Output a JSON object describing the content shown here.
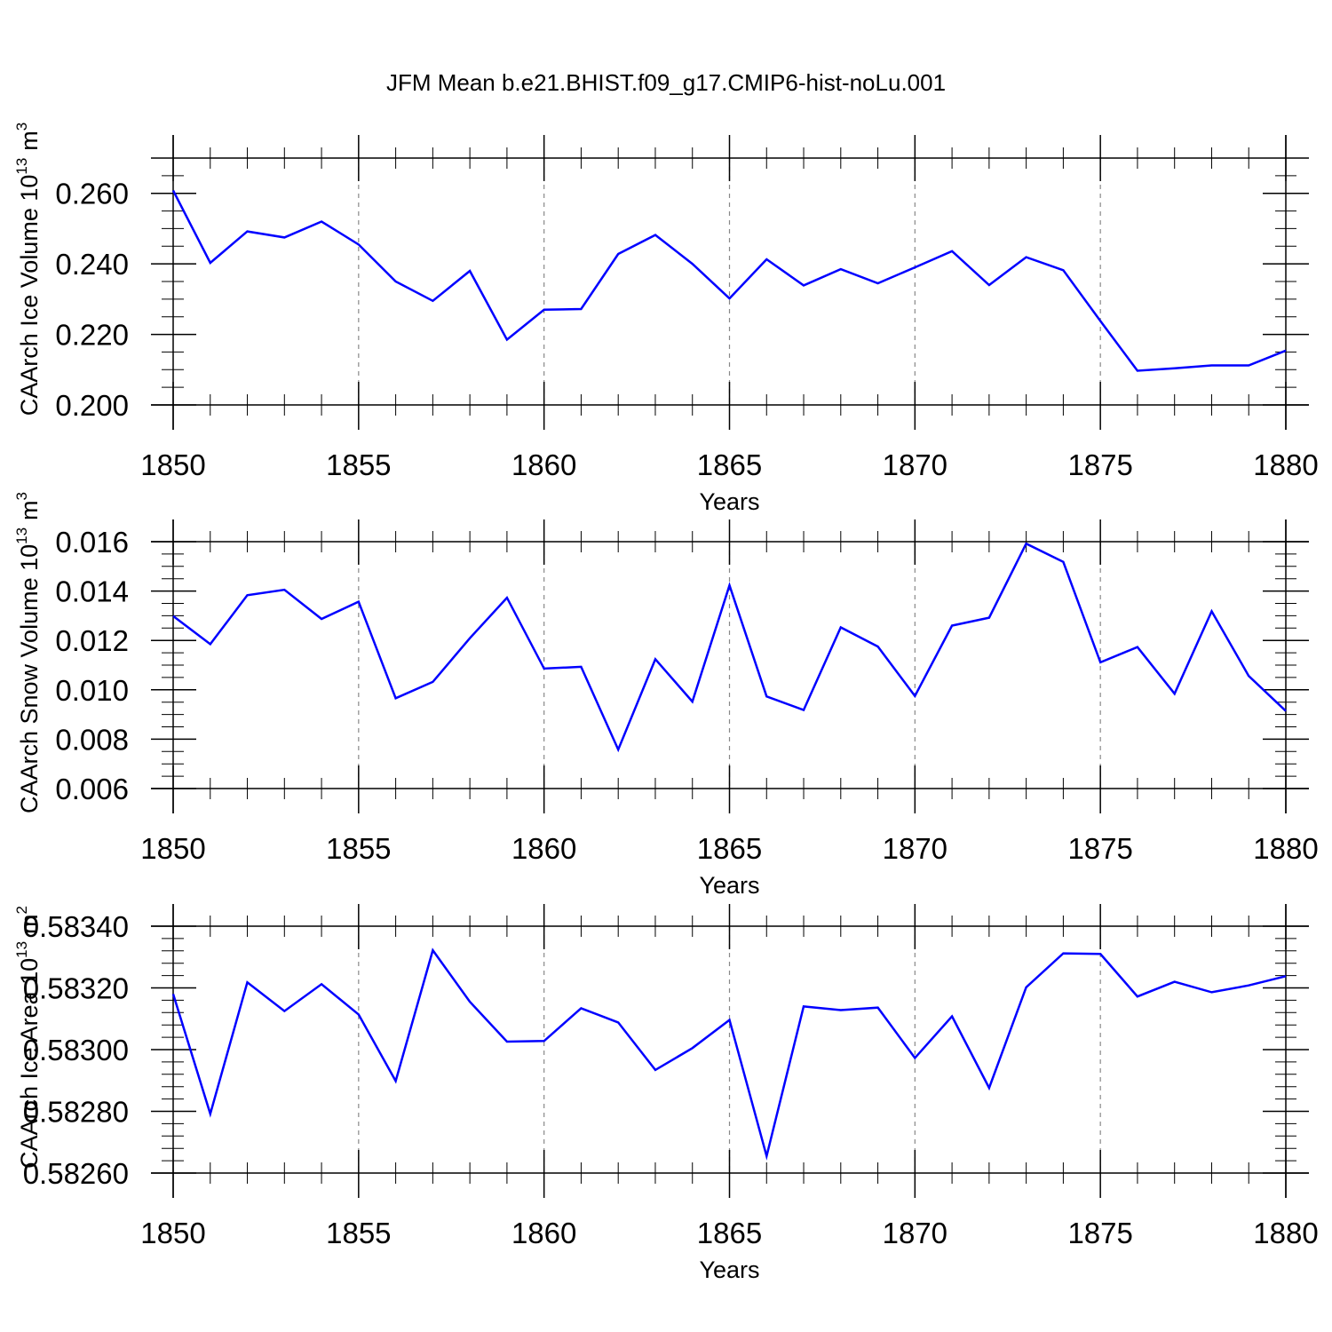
{
  "title": "JFM Mean b.e21.BHIST.f09_g17.CMIP6-hist-noLu.001",
  "colors": {
    "line": "#0000ff",
    "axis": "#000000",
    "grid": "#888888"
  },
  "chart_data": [
    {
      "type": "line",
      "xlabel": "Years",
      "ylabel": "CAArch Ice Volume 10",
      "ylabel_sup": "13",
      "ylabel_unit": "m",
      "ylabel_unit_sup": "3",
      "xlim": [
        1850,
        1880
      ],
      "ylim": [
        0.2,
        0.27
      ],
      "x_ticks": [
        "1850",
        "1855",
        "1860",
        "1865",
        "1870",
        "1875",
        "1880"
      ],
      "y_ticks": [
        "0.200",
        "0.220",
        "0.240",
        "0.260"
      ],
      "y_tick_values": [
        0.2,
        0.22,
        0.24,
        0.26
      ],
      "y_minor_step": 0.005,
      "x": [
        1850,
        1851,
        1852,
        1853,
        1854,
        1855,
        1856,
        1857,
        1858,
        1859,
        1860,
        1861,
        1862,
        1863,
        1864,
        1865,
        1866,
        1867,
        1868,
        1869,
        1870,
        1871,
        1872,
        1873,
        1874,
        1875,
        1876,
        1877,
        1878,
        1879,
        1880
      ],
      "series": [
        {
          "name": "CAArch Ice Volume",
          "values": [
            0.2608,
            0.2403,
            0.2492,
            0.2475,
            0.252,
            0.2455,
            0.235,
            0.2295,
            0.238,
            0.2185,
            0.227,
            0.2272,
            0.2428,
            0.2482,
            0.24,
            0.2302,
            0.2413,
            0.2339,
            0.2385,
            0.2345,
            0.239,
            0.2436,
            0.234,
            0.2419,
            0.2382,
            0.2238,
            0.2097,
            0.2104,
            0.2112,
            0.2112,
            0.2154
          ]
        }
      ]
    },
    {
      "type": "line",
      "xlabel": "Years",
      "ylabel": "CAArch Snow Volume 10",
      "ylabel_sup": "13",
      "ylabel_unit": "m",
      "ylabel_unit_sup": "3",
      "xlim": [
        1850,
        1880
      ],
      "ylim": [
        0.006,
        0.016
      ],
      "x_ticks": [
        "1850",
        "1855",
        "1860",
        "1865",
        "1870",
        "1875",
        "1880"
      ],
      "y_ticks": [
        "0.006",
        "0.008",
        "0.010",
        "0.012",
        "0.014",
        "0.016"
      ],
      "y_tick_values": [
        0.006,
        0.008,
        0.01,
        0.012,
        0.014,
        0.016
      ],
      "y_minor_step": 0.0005,
      "x": [
        1850,
        1851,
        1852,
        1853,
        1854,
        1855,
        1856,
        1857,
        1858,
        1859,
        1860,
        1861,
        1862,
        1863,
        1864,
        1865,
        1866,
        1867,
        1868,
        1869,
        1870,
        1871,
        1872,
        1873,
        1874,
        1875,
        1876,
        1877,
        1878,
        1879,
        1880
      ],
      "series": [
        {
          "name": "CAArch Snow Volume",
          "values": [
            0.01299,
            0.01185,
            0.01383,
            0.01405,
            0.01287,
            0.01357,
            0.00966,
            0.01032,
            0.01209,
            0.01373,
            0.01086,
            0.01093,
            0.00758,
            0.01124,
            0.00952,
            0.01423,
            0.00973,
            0.00918,
            0.01253,
            0.01175,
            0.00975,
            0.0126,
            0.01292,
            0.01592,
            0.01518,
            0.01111,
            0.01173,
            0.00984,
            0.01318,
            0.01056,
            0.00914
          ]
        }
      ]
    },
    {
      "type": "line",
      "xlabel": "Years",
      "ylabel": "CAArch Ice Area 10",
      "ylabel_sup": "13",
      "ylabel_unit": "m",
      "ylabel_unit_sup": "2",
      "xlim": [
        1850,
        1880
      ],
      "ylim": [
        0.5826,
        0.5834
      ],
      "x_ticks": [
        "1850",
        "1855",
        "1860",
        "1865",
        "1870",
        "1875",
        "1880"
      ],
      "y_ticks": [
        "0.58260",
        "0.58280",
        "0.58300",
        "0.58320",
        "0.58340"
      ],
      "y_tick_values": [
        0.5826,
        0.5828,
        0.583,
        0.5832,
        0.5834
      ],
      "y_minor_step": 4e-05,
      "x": [
        1850,
        1851,
        1852,
        1853,
        1854,
        1855,
        1856,
        1857,
        1858,
        1859,
        1860,
        1861,
        1862,
        1863,
        1864,
        1865,
        1866,
        1867,
        1868,
        1869,
        1870,
        1871,
        1872,
        1873,
        1874,
        1875,
        1876,
        1877,
        1878,
        1879,
        1880
      ],
      "series": [
        {
          "name": "CAArch Ice Area",
          "values": [
            0.58318,
            0.582792,
            0.583218,
            0.583125,
            0.583212,
            0.583114,
            0.582898,
            0.583322,
            0.583155,
            0.583026,
            0.583028,
            0.583134,
            0.583088,
            0.582934,
            0.583005,
            0.583096,
            0.582655,
            0.58314,
            0.583128,
            0.583136,
            0.582973,
            0.583108,
            0.582876,
            0.583202,
            0.583312,
            0.58331,
            0.583172,
            0.58322,
            0.583186,
            0.583208,
            0.583238
          ]
        }
      ]
    }
  ]
}
